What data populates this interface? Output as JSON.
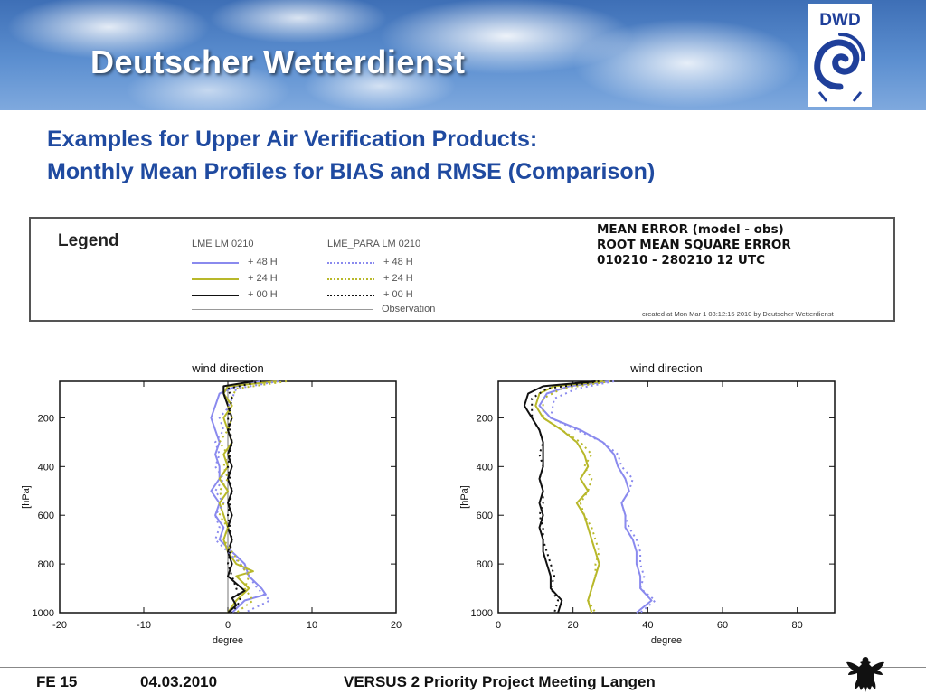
{
  "header": {
    "title": "Deutscher Wetterdienst",
    "logo_text": "DWD",
    "logo_color": "#1f3f9a"
  },
  "slide": {
    "title_line1": "Examples for Upper Air Verification Products:",
    "title_line2": "Monthly Mean Profiles for BIAS and RMSE (Comparison)"
  },
  "legend": {
    "heading": "Legend",
    "col1_header": "LME LM 0210",
    "col2_header": "LME_PARA LM 0210",
    "col1_items": [
      {
        "label": "+ 48 H",
        "color": "#8a8aee"
      },
      {
        "label": "+ 24 H",
        "color": "#b8b82a"
      },
      {
        "label": "+ 00 H",
        "color": "#111111"
      }
    ],
    "col2_items": [
      {
        "label": "+ 48 H",
        "color": "#8a8aee"
      },
      {
        "label": "+ 24 H",
        "color": "#b8b82a"
      },
      {
        "label": "+ 00 H",
        "color": "#111111"
      }
    ],
    "observation_label": "Observation",
    "info_line1": "MEAN ERROR (model - obs)",
    "info_line2": "ROOT MEAN SQUARE ERROR",
    "info_line3": "010210 - 280210 12 UTC",
    "created": "created at Mon Mar  1 08:12:15 2010 by Deutscher Wetterdienst"
  },
  "chart_data": [
    {
      "type": "line",
      "title": "wind direction",
      "xlabel": "degree",
      "ylabel": "[hPa]",
      "xlim": [
        -20,
        20
      ],
      "ylim": [
        1000,
        50
      ],
      "y_inverted": true,
      "xticks": [
        -20,
        -10,
        0,
        10,
        20
      ],
      "yticks": [
        200,
        400,
        600,
        800,
        1000
      ],
      "reference_line_x": 0,
      "series": [
        {
          "name": "LME LM 0210 + 48 H",
          "color": "#8a8aee",
          "style": "solid",
          "points": [
            [
              4,
              50
            ],
            [
              1,
              70
            ],
            [
              -1,
              100
            ],
            [
              -1.5,
              150
            ],
            [
              -2,
              200
            ],
            [
              -1.5,
              250
            ],
            [
              -1,
              300
            ],
            [
              -1.5,
              350
            ],
            [
              -1,
              400
            ],
            [
              -1,
              450
            ],
            [
              -2,
              500
            ],
            [
              -1,
              550
            ],
            [
              -1.5,
              600
            ],
            [
              -0.5,
              650
            ],
            [
              -1,
              700
            ],
            [
              0.5,
              750
            ],
            [
              2,
              800
            ],
            [
              2.5,
              850
            ],
            [
              4,
              900
            ],
            [
              4.5,
              925
            ],
            [
              2,
              950
            ],
            [
              0.5,
              1000
            ]
          ]
        },
        {
          "name": "LME LM 0210 + 24 H",
          "color": "#b8b82a",
          "style": "solid",
          "points": [
            [
              6,
              50
            ],
            [
              0,
              70
            ],
            [
              -0.5,
              100
            ],
            [
              0.5,
              150
            ],
            [
              -0.5,
              200
            ],
            [
              0,
              250
            ],
            [
              0.5,
              300
            ],
            [
              -0.5,
              350
            ],
            [
              0,
              400
            ],
            [
              -1,
              450
            ],
            [
              0,
              500
            ],
            [
              -1,
              550
            ],
            [
              -0.5,
              600
            ],
            [
              0,
              650
            ],
            [
              -0.5,
              700
            ],
            [
              0,
              750
            ],
            [
              1,
              800
            ],
            [
              3,
              830
            ],
            [
              1,
              850
            ],
            [
              2.5,
              900
            ],
            [
              1,
              950
            ],
            [
              0,
              1000
            ]
          ]
        },
        {
          "name": "LME LM 0210 + 00 H",
          "color": "#111111",
          "style": "solid",
          "points": [
            [
              3,
              50
            ],
            [
              -0.5,
              70
            ],
            [
              -0.5,
              100
            ],
            [
              0,
              150
            ],
            [
              0.5,
              200
            ],
            [
              0,
              250
            ],
            [
              0.5,
              300
            ],
            [
              0,
              350
            ],
            [
              0.5,
              400
            ],
            [
              0,
              450
            ],
            [
              0.5,
              500
            ],
            [
              0,
              550
            ],
            [
              0.5,
              600
            ],
            [
              0,
              650
            ],
            [
              0.5,
              700
            ],
            [
              0,
              750
            ],
            [
              0.5,
              800
            ],
            [
              0,
              850
            ],
            [
              1,
              880
            ],
            [
              2,
              910
            ],
            [
              0.5,
              940
            ],
            [
              1,
              970
            ],
            [
              0,
              1000
            ]
          ]
        },
        {
          "name": "LME_PARA LM 0210 + 48 H",
          "color": "#8a8aee",
          "style": "dotted",
          "points": [
            [
              6,
              50
            ],
            [
              1,
              80
            ],
            [
              0.5,
              120
            ],
            [
              0,
              160
            ],
            [
              -1,
              200
            ],
            [
              -0.5,
              250
            ],
            [
              -1.5,
              300
            ],
            [
              -1,
              350
            ],
            [
              -1.5,
              400
            ],
            [
              -0.5,
              450
            ],
            [
              -1.5,
              500
            ],
            [
              -0.5,
              550
            ],
            [
              -1.5,
              600
            ],
            [
              -1,
              650
            ],
            [
              -1.5,
              700
            ],
            [
              0,
              750
            ],
            [
              1.5,
              800
            ],
            [
              2.5,
              850
            ],
            [
              3.5,
              900
            ],
            [
              5,
              950
            ],
            [
              2,
              1000
            ]
          ]
        },
        {
          "name": "LME_PARA LM 0210 + 24 H",
          "color": "#b8b82a",
          "style": "dotted",
          "points": [
            [
              7,
              50
            ],
            [
              1,
              80
            ],
            [
              0,
              150
            ],
            [
              0.5,
              200
            ],
            [
              0,
              250
            ],
            [
              -1,
              300
            ],
            [
              0,
              350
            ],
            [
              -0.5,
              400
            ],
            [
              0,
              450
            ],
            [
              -1,
              500
            ],
            [
              -0.5,
              550
            ],
            [
              -1,
              600
            ],
            [
              0,
              650
            ],
            [
              -0.5,
              700
            ],
            [
              0.5,
              750
            ],
            [
              1.5,
              800
            ],
            [
              2.5,
              850
            ],
            [
              2,
              900
            ],
            [
              3,
              950
            ],
            [
              1,
              1000
            ]
          ]
        },
        {
          "name": "LME_PARA LM 0210 + 00 H",
          "color": "#111111",
          "style": "dotted",
          "points": [
            [
              4,
              50
            ],
            [
              0,
              80
            ],
            [
              0.5,
              120
            ],
            [
              0,
              200
            ],
            [
              0.5,
              300
            ],
            [
              0,
              400
            ],
            [
              0.5,
              500
            ],
            [
              0,
              600
            ],
            [
              0.5,
              700
            ],
            [
              0,
              800
            ],
            [
              0.5,
              850
            ],
            [
              1,
              900
            ],
            [
              1.5,
              950
            ],
            [
              0.5,
              1000
            ]
          ]
        }
      ]
    },
    {
      "type": "line",
      "title": "wind direction",
      "xlabel": "degree",
      "ylabel": "[hPa]",
      "xlim": [
        0,
        90
      ],
      "ylim": [
        1000,
        50
      ],
      "y_inverted": true,
      "xticks": [
        0,
        20,
        40,
        60,
        80
      ],
      "yticks": [
        200,
        400,
        600,
        800,
        1000
      ],
      "series": [
        {
          "name": "LME LM 0210 + 48 H",
          "color": "#8a8aee",
          "style": "solid",
          "points": [
            [
              30,
              50
            ],
            [
              19,
              70
            ],
            [
              13,
              100
            ],
            [
              11,
              150
            ],
            [
              14,
              200
            ],
            [
              22,
              250
            ],
            [
              28,
              300
            ],
            [
              31,
              350
            ],
            [
              32,
              400
            ],
            [
              34,
              450
            ],
            [
              35,
              500
            ],
            [
              33,
              550
            ],
            [
              34,
              600
            ],
            [
              34,
              650
            ],
            [
              36,
              700
            ],
            [
              37,
              750
            ],
            [
              37,
              800
            ],
            [
              38,
              850
            ],
            [
              38,
              900
            ],
            [
              41,
              950
            ],
            [
              37,
              1000
            ]
          ]
        },
        {
          "name": "LME LM 0210 + 24 H",
          "color": "#b8b82a",
          "style": "solid",
          "points": [
            [
              28,
              50
            ],
            [
              15,
              70
            ],
            [
              11,
              100
            ],
            [
              10,
              150
            ],
            [
              12,
              200
            ],
            [
              17,
              250
            ],
            [
              21,
              300
            ],
            [
              23,
              350
            ],
            [
              24,
              400
            ],
            [
              22,
              450
            ],
            [
              24,
              500
            ],
            [
              21,
              550
            ],
            [
              23,
              600
            ],
            [
              24,
              650
            ],
            [
              25,
              700
            ],
            [
              26,
              750
            ],
            [
              27,
              800
            ],
            [
              26,
              850
            ],
            [
              25,
              900
            ],
            [
              24,
              950
            ],
            [
              25,
              1000
            ]
          ]
        },
        {
          "name": "LME LM 0210 + 00 H",
          "color": "#111111",
          "style": "solid",
          "points": [
            [
              26,
              50
            ],
            [
              12,
              70
            ],
            [
              8,
              100
            ],
            [
              7,
              150
            ],
            [
              9,
              200
            ],
            [
              11,
              250
            ],
            [
              12,
              300
            ],
            [
              12,
              350
            ],
            [
              12,
              400
            ],
            [
              11,
              450
            ],
            [
              12,
              500
            ],
            [
              11,
              550
            ],
            [
              12,
              600
            ],
            [
              11,
              650
            ],
            [
              12,
              700
            ],
            [
              12,
              750
            ],
            [
              13,
              800
            ],
            [
              14,
              850
            ],
            [
              14,
              900
            ],
            [
              17,
              950
            ],
            [
              16,
              1000
            ]
          ]
        },
        {
          "name": "LME_PARA LM 0210 + 48 H",
          "color": "#8a8aee",
          "style": "dotted",
          "points": [
            [
              31,
              50
            ],
            [
              21,
              80
            ],
            [
              15,
              120
            ],
            [
              14,
              200
            ],
            [
              21,
              250
            ],
            [
              28,
              300
            ],
            [
              32,
              350
            ],
            [
              33,
              400
            ],
            [
              36,
              450
            ],
            [
              35,
              500
            ],
            [
              33,
              550
            ],
            [
              34,
              600
            ],
            [
              35,
              650
            ],
            [
              37,
              700
            ],
            [
              38,
              750
            ],
            [
              38,
              800
            ],
            [
              39,
              850
            ],
            [
              38,
              900
            ],
            [
              42,
              950
            ],
            [
              38,
              1000
            ]
          ]
        },
        {
          "name": "LME_PARA LM 0210 + 24 H",
          "color": "#b8b82a",
          "style": "dotted",
          "points": [
            [
              30,
              50
            ],
            [
              17,
              80
            ],
            [
              12,
              120
            ],
            [
              12,
              200
            ],
            [
              17,
              250
            ],
            [
              22,
              300
            ],
            [
              25,
              350
            ],
            [
              23,
              400
            ],
            [
              25,
              450
            ],
            [
              24,
              500
            ],
            [
              22,
              550
            ],
            [
              23,
              600
            ],
            [
              25,
              650
            ],
            [
              26,
              700
            ],
            [
              27,
              750
            ],
            [
              26,
              800
            ],
            [
              26,
              850
            ],
            [
              25,
              900
            ],
            [
              24,
              950
            ],
            [
              26,
              1000
            ]
          ]
        },
        {
          "name": "LME_PARA LM 0210 + 00 H",
          "color": "#111111",
          "style": "dotted",
          "points": [
            [
              27,
              50
            ],
            [
              13,
              80
            ],
            [
              9,
              120
            ],
            [
              9,
              200
            ],
            [
              11,
              250
            ],
            [
              12,
              300
            ],
            [
              11,
              350
            ],
            [
              12,
              400
            ],
            [
              11,
              450
            ],
            [
              12,
              500
            ],
            [
              12,
              550
            ],
            [
              11,
              600
            ],
            [
              12,
              650
            ],
            [
              12,
              700
            ],
            [
              13,
              750
            ],
            [
              14,
              800
            ],
            [
              15,
              850
            ],
            [
              14,
              900
            ],
            [
              16,
              950
            ],
            [
              15,
              1000
            ]
          ]
        }
      ]
    }
  ],
  "footer": {
    "page": "FE 15",
    "date": "04.03.2010",
    "event": "VERSUS 2 Priority Project Meeting Langen"
  }
}
